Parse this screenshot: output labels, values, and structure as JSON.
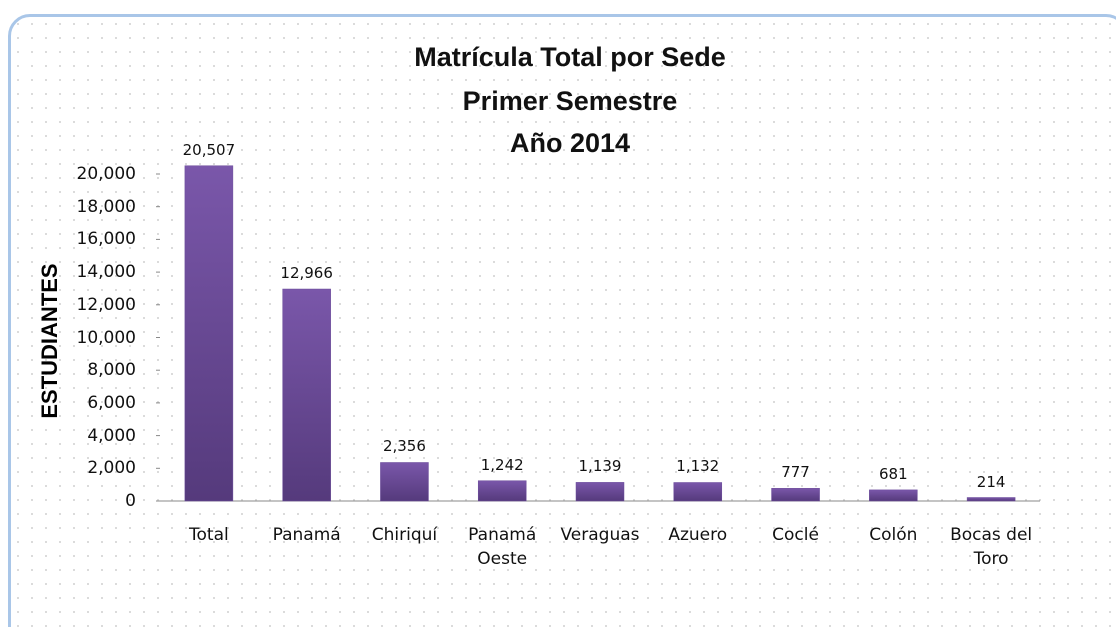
{
  "chart_data": {
    "type": "bar",
    "title": [
      "Matrícula Total por Sede",
      "Primer Semestre",
      "Año 2014"
    ],
    "y_label": "ESTUDIANTES",
    "categories": [
      "Total",
      "Panamá",
      "Chiriquí",
      "Panamá Oeste",
      "Veraguas",
      "Azuero",
      "Coclé",
      "Colón",
      "Bocas del Toro"
    ],
    "values": [
      20507,
      12966,
      2356,
      1242,
      1139,
      1132,
      777,
      681,
      214
    ],
    "value_labels": [
      "20,507",
      "12,966",
      "2,356",
      "1,242",
      "1,139",
      "1,132",
      "777",
      "681",
      "214"
    ],
    "color": "#6b4c9a",
    "ylim": [
      0,
      20000
    ],
    "yticks": [
      0,
      {
        "value": 2000,
        "label": "2,000"
      },
      {
        "value": 4000,
        "label": "4,000"
      },
      {
        "value": 6000,
        "label": "6,000"
      },
      {
        "value": 8000,
        "label": "8,000"
      },
      {
        "value": 10000,
        "label": "10,000"
      },
      {
        "value": 12000,
        "label": "12,000"
      },
      {
        "value": 14000,
        "label": "14,000"
      },
      {
        "value": 16000,
        "label": "16,000"
      },
      {
        "value": 18000,
        "label": "18,000"
      },
      {
        "value": 20000,
        "label": "20,000"
      }
    ],
    "grid": false
  }
}
